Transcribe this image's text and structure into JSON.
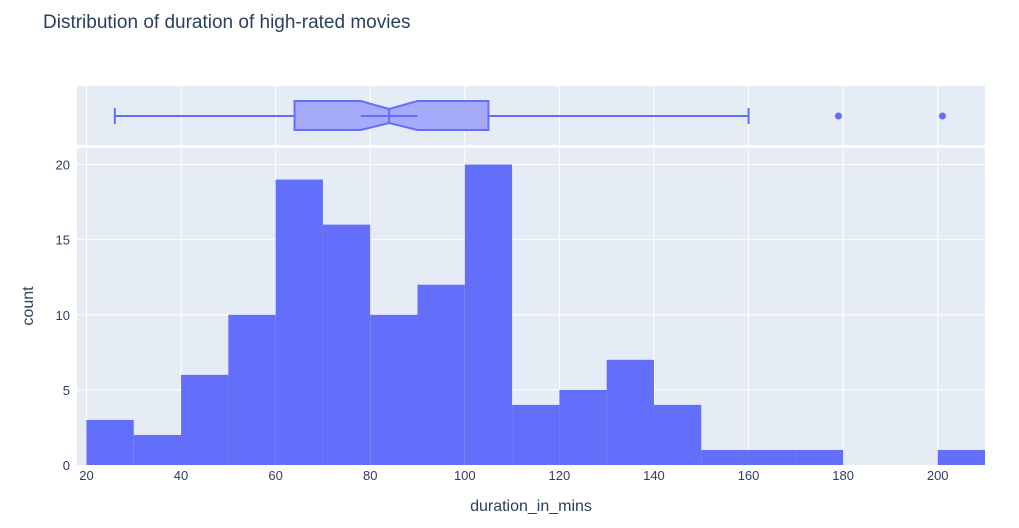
{
  "chart_data": {
    "type": "bar",
    "title": "Distribution of duration of high-rated movies",
    "xlabel": "duration_in_mins",
    "ylabel": "count",
    "xlim": [
      18,
      210
    ],
    "ylim": [
      0,
      21.1
    ],
    "x_ticks": [
      20,
      40,
      60,
      80,
      100,
      120,
      140,
      160,
      180,
      200
    ],
    "y_ticks": [
      0,
      5,
      10,
      15,
      20
    ],
    "grid": true,
    "bin_width": 10,
    "bins": [
      {
        "start": 20,
        "end": 30,
        "count": 3
      },
      {
        "start": 30,
        "end": 40,
        "count": 2
      },
      {
        "start": 40,
        "end": 50,
        "count": 6
      },
      {
        "start": 50,
        "end": 60,
        "count": 10
      },
      {
        "start": 60,
        "end": 70,
        "count": 19
      },
      {
        "start": 70,
        "end": 80,
        "count": 16
      },
      {
        "start": 80,
        "end": 90,
        "count": 10
      },
      {
        "start": 90,
        "end": 100,
        "count": 12
      },
      {
        "start": 100,
        "end": 110,
        "count": 20
      },
      {
        "start": 110,
        "end": 120,
        "count": 4
      },
      {
        "start": 120,
        "end": 130,
        "count": 5
      },
      {
        "start": 130,
        "end": 140,
        "count": 7
      },
      {
        "start": 140,
        "end": 150,
        "count": 4
      },
      {
        "start": 150,
        "end": 160,
        "count": 1
      },
      {
        "start": 160,
        "end": 170,
        "count": 1
      },
      {
        "start": 170,
        "end": 180,
        "count": 1
      },
      {
        "start": 180,
        "end": 190,
        "count": 0
      },
      {
        "start": 190,
        "end": 200,
        "count": 0
      },
      {
        "start": 200,
        "end": 210,
        "count": 1
      }
    ],
    "marginal_box": {
      "type": "box",
      "notched": true,
      "lower_whisker": 26,
      "q1": 64,
      "median": 84,
      "notch_low": 78,
      "notch_high": 90,
      "q3": 105,
      "upper_whisker": 160,
      "outliers": [
        179,
        201
      ]
    },
    "colors": {
      "bar": "#636efa",
      "plot_bg": "#e5ecf6",
      "grid": "#ffffff",
      "text": "#2a3f5f",
      "box_fill": "#a5abfa"
    }
  }
}
